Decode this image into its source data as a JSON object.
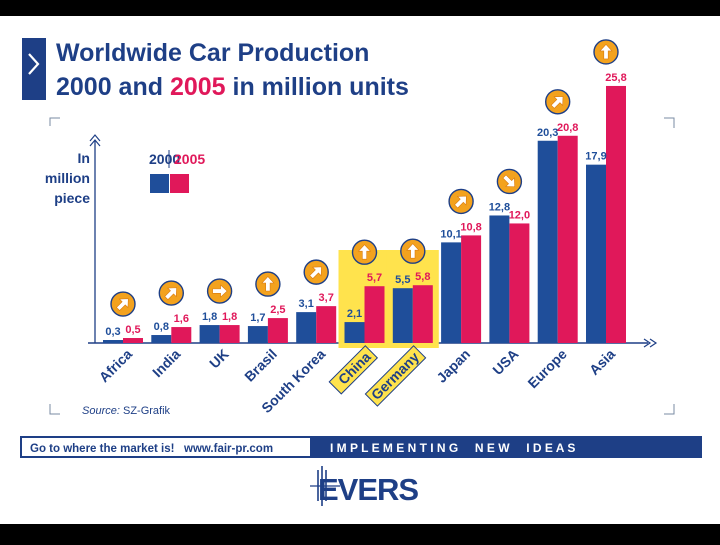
{
  "slide": {
    "title_line1": "Worldwide Car Production",
    "title_line2_prefix": "2000 and ",
    "title_line2_highlight": "2005",
    "title_line2_suffix": " in million units",
    "source_label": "Source:",
    "source_value": " SZ-Grafik",
    "footer_left": "Go to where the market is!   www.fair-pr.com",
    "footer_right": "I M P L E M E N T I N G     N E W     I D E A S",
    "logo_text": "EVERS"
  },
  "colors": {
    "series_2000": "#1f4e9a",
    "series_2005": "#e0185a",
    "highlight": "#ffe34d",
    "badge": "#f3a21e",
    "navy": "#1e3f86"
  },
  "chart_data": {
    "type": "bar",
    "title": "Worldwide Car Production 2000 and 2005 in million units",
    "ylabel": "In million piece",
    "ylim": [
      0,
      27
    ],
    "categories": [
      "Africa",
      "India",
      "UK",
      "Brasil",
      "South Korea",
      "China",
      "Germany",
      "Japan",
      "USA",
      "Europe",
      "Asia"
    ],
    "highlighted_categories": [
      "China",
      "Germany"
    ],
    "series": [
      {
        "name": "2000",
        "values": [
          0.3,
          0.8,
          1.8,
          1.7,
          3.1,
          2.1,
          5.5,
          10.1,
          12.8,
          20.3,
          17.9
        ],
        "labels": [
          "0,3",
          "0,8",
          "1,8",
          "1,7",
          "3,1",
          "2,1",
          "5,5",
          "10,1",
          "12,8",
          "20,3",
          "17,9"
        ]
      },
      {
        "name": "2005",
        "values": [
          0.5,
          1.6,
          1.8,
          2.5,
          3.7,
          5.7,
          5.8,
          10.8,
          12.0,
          20.8,
          25.8
        ],
        "labels": [
          "0,5",
          "1,6",
          "1,8",
          "2,5",
          "3,7",
          "5,7",
          "5,8",
          "10,8",
          "12,0",
          "20,8",
          "25,8"
        ]
      }
    ],
    "trend_icons": [
      "up-right",
      "up-right",
      "right",
      "up",
      "up-right",
      "up",
      "up",
      "up-right",
      "down-right",
      "up-right",
      "up"
    ],
    "legend": {
      "label_2000": "2000",
      "label_2005": "2005",
      "placement": "top-left"
    }
  }
}
